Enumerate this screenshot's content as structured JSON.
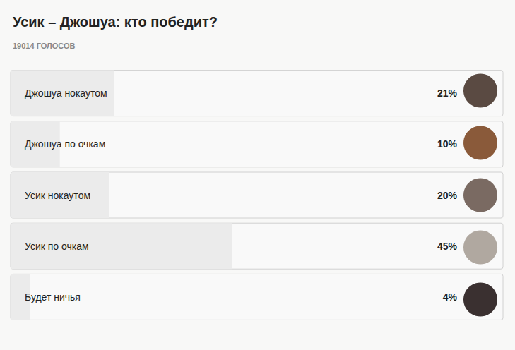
{
  "chart_data": {
    "type": "bar",
    "orientation": "horizontal",
    "title": "Усик – Джошуа: кто победит?",
    "subtitle": "19014 ГОЛОСОВ",
    "categories": [
      "Джошуа нокаутом",
      "Джошуа по очкам",
      "Усик нокаутом",
      "Усик по очкам",
      "Будет ничья"
    ],
    "values": [
      21,
      10,
      20,
      45,
      4
    ],
    "value_labels": [
      "21%",
      "10%",
      "20%",
      "45%",
      "4%"
    ],
    "color": "#ebebeb",
    "xlim": [
      0,
      100
    ],
    "data_labels": true,
    "tick_labels": false,
    "grid": false
  }
}
